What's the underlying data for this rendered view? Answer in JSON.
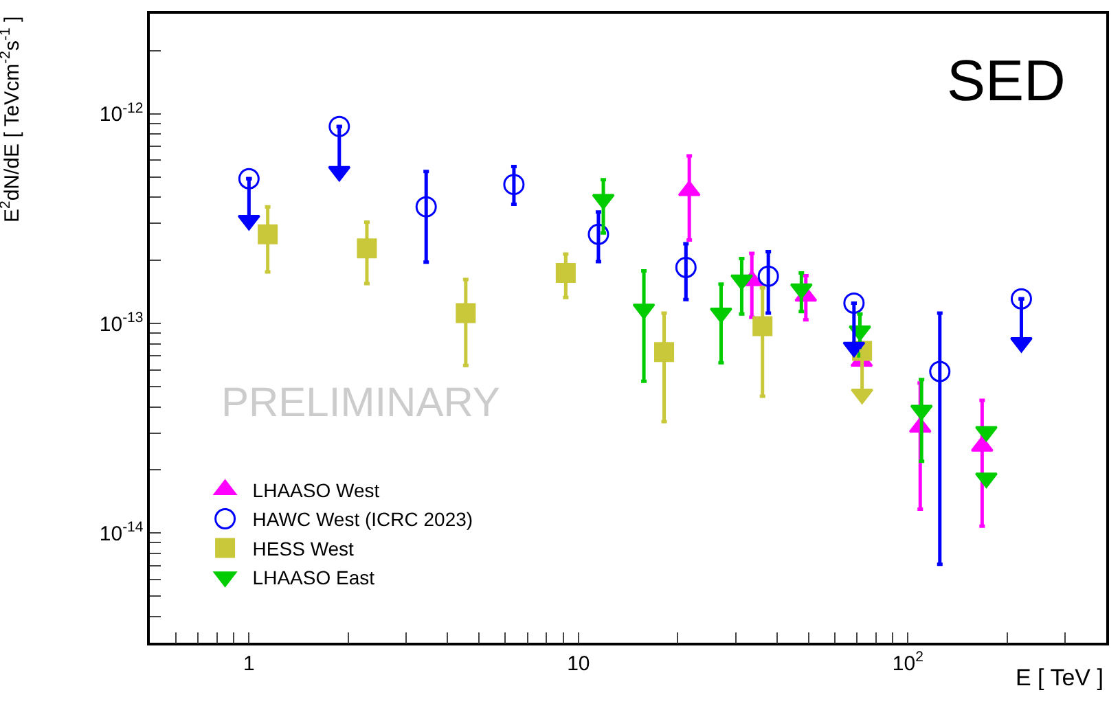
{
  "chart_data": {
    "type": "scatter",
    "xlabel": "E [ TeV ]",
    "ylabel": "E$^{2}$dN/dE [ TeVcm$^{-2}$s$^{-1}$ ]",
    "annotations": [
      "SED",
      "PRELIMINARY"
    ],
    "log": "xy",
    "legend": "bottom left",
    "xlim": [
      0.5,
      400
    ],
    "ylim": [
      3e-15,
      3e-12
    ],
    "xticks": [
      {
        "value": 0.6,
        "label": null
      },
      {
        "value": 0.7,
        "label": null
      },
      {
        "value": 0.8,
        "label": null
      },
      {
        "value": 0.9,
        "label": null
      },
      1,
      {
        "value": 2,
        "label": null
      },
      {
        "value": 3,
        "label": null
      },
      {
        "value": 4,
        "label": null
      },
      {
        "value": 5,
        "label": null
      },
      {
        "value": 6,
        "label": null
      },
      {
        "value": 7,
        "label": null
      },
      {
        "value": 8,
        "label": null
      },
      {
        "value": 9,
        "label": null
      },
      10,
      {
        "value": 20,
        "label": null
      },
      {
        "value": 30,
        "label": null
      },
      {
        "value": 40,
        "label": null
      },
      {
        "value": 50,
        "label": null
      },
      {
        "value": 60,
        "label": null
      },
      {
        "value": 70,
        "label": null
      },
      {
        "value": 80,
        "label": null
      },
      {
        "value": 90,
        "label": null
      },
      {
        "value": 100,
        "label": "10$^{2}$"
      },
      {
        "value": 200,
        "label": null
      },
      {
        "value": 300,
        "label": null
      }
    ],
    "yticks": [
      {
        "value": 4e-15,
        "label": null
      },
      {
        "value": 5e-15,
        "label": null
      },
      {
        "value": 6e-15,
        "label": null
      },
      {
        "value": 7e-15,
        "label": null
      },
      {
        "value": 8e-15,
        "label": null
      },
      {
        "value": 9e-15,
        "label": null
      },
      {
        "value": 1e-14,
        "label": "10$^{-14}$"
      },
      {
        "value": 2e-14,
        "label": null
      },
      {
        "value": 3e-14,
        "label": null
      },
      {
        "value": 4e-14,
        "label": null
      },
      {
        "value": 5e-14,
        "label": null
      },
      {
        "value": 6e-14,
        "label": null
      },
      {
        "value": 7e-14,
        "label": null
      },
      {
        "value": 8e-14,
        "label": null
      },
      {
        "value": 9e-14,
        "label": null
      },
      {
        "value": 1e-13,
        "label": "10$^{-13}$"
      },
      {
        "value": 2e-13,
        "label": null
      },
      {
        "value": 3e-13,
        "label": null
      },
      {
        "value": 4e-13,
        "label": null
      },
      {
        "value": 5e-13,
        "label": null
      },
      {
        "value": 6e-13,
        "label": null
      },
      {
        "value": 7e-13,
        "label": null
      },
      {
        "value": 8e-13,
        "label": null
      },
      {
        "value": 9e-13,
        "label": null
      },
      {
        "value": 1e-12,
        "label": "10$^{-12}$"
      },
      {
        "value": 2e-12,
        "label": null
      }
    ],
    "series": [
      {
        "name": "LHAASO West",
        "color": "#ff00ff",
        "marker": "triangle",
        "x": [
          21.7,
          33.6,
          49,
          72.4,
          109,
          168
        ],
        "values": [
          4.3e-13,
          1.6e-13,
          1.35e-13,
          6.6e-14,
          3.2e-14,
          2.6e-14
        ],
        "errors": [
          [
            2.5e-13,
            6.3e-13
          ],
          [
            1.07e-13,
            2.16e-13
          ],
          [
            1.04e-13,
            1.69e-13
          ],
          null,
          [
            1.3e-14,
            5.2e-14
          ],
          [
            1.08e-14,
            4.3e-14
          ]
        ]
      },
      {
        "name": "HAWC West (ICRC 2023)",
        "color": "#0000ff",
        "marker": "circle-open",
        "x": [
          1.0,
          1.88,
          3.45,
          6.37,
          11.5,
          21.2,
          37.7,
          68.6,
          125,
          221
        ],
        "values": [
          4.9e-13,
          8.7e-13,
          3.6e-13,
          4.6e-13,
          2.66e-13,
          1.85e-13,
          1.68e-13,
          1.25e-13,
          5.9e-14,
          1.31e-13
        ],
        "errors": [
          null,
          null,
          [
            1.96e-13,
            5.3e-13
          ],
          [
            3.7e-13,
            5.6e-13
          ],
          [
            1.97e-13,
            3.4e-13
          ],
          [
            1.3e-13,
            2.4e-13
          ],
          [
            1.12e-13,
            2.2e-13
          ],
          null,
          [
            7.1e-15,
            1.12e-13
          ],
          null
        ]
      },
      {
        "name": "HESS West",
        "color": "#c8c83a",
        "marker": "square",
        "x": [
          1.14,
          2.28,
          4.55,
          9.15,
          18.2,
          36.2,
          72.6
        ],
        "values": [
          2.66e-13,
          2.28e-13,
          1.12e-13,
          1.74e-13,
          7.3e-14,
          9.7e-14,
          7.4e-14
        ],
        "errors": [
          [
            1.76e-13,
            3.6e-13
          ],
          [
            1.55e-13,
            3.04e-13
          ],
          [
            6.3e-14,
            1.62e-13
          ],
          [
            1.33e-13,
            2.14e-13
          ],
          [
            3.4e-14,
            1.12e-13
          ],
          [
            4.5e-14,
            1.48e-13
          ],
          null
        ]
      },
      {
        "name": "LHAASO East",
        "color": "#00cc00",
        "marker": "triangle-down",
        "x": [
          11.9,
          15.8,
          27.1,
          31.3,
          47.5,
          71.5,
          110,
          173
        ],
        "values": [
          3.9e-13,
          1.17e-13,
          1.12e-13,
          1.61e-13,
          1.46e-13,
          9.2e-14,
          3.85e-14,
          3.05e-14
        ],
        "errors": [
          [
            2.7e-13,
            4.85e-13
          ],
          [
            5.3e-14,
            1.78e-13
          ],
          [
            6.5e-14,
            1.54e-13
          ],
          [
            1.11e-13,
            2.04e-13
          ],
          [
            1.14e-13,
            1.74e-13
          ],
          [
            7e-14,
            1.11e-13
          ],
          [
            2.2e-14,
            5.4e-14
          ],
          null
        ]
      },
      {
        "color": "#0000ff",
        "marker": "triangle-down",
        "x": [
          1.0,
          1.88,
          68.6,
          221
        ],
        "values": [
          3.1e-13,
          5.3e-13,
          7.7e-14,
          8.1e-14
        ],
        "errors": [
          [
            3.1e-13,
            4.9e-13
          ],
          [
            5.3e-13,
            8.7e-13
          ],
          [
            7.7e-14,
            1.25e-13
          ],
          [
            8.1e-14,
            1.31e-13
          ]
        ]
      },
      {
        "color": "#c8c83a",
        "marker": "triangle-down",
        "x": [
          72.6
        ],
        "values": [
          4.6e-14
        ],
        "errors": [
          [
            4.6e-14,
            7.4e-14
          ]
        ]
      },
      {
        "color": "#00cc00",
        "marker": "triangle-down",
        "x": [
          173
        ],
        "values": [
          1.83e-14
        ]
      }
    ]
  }
}
